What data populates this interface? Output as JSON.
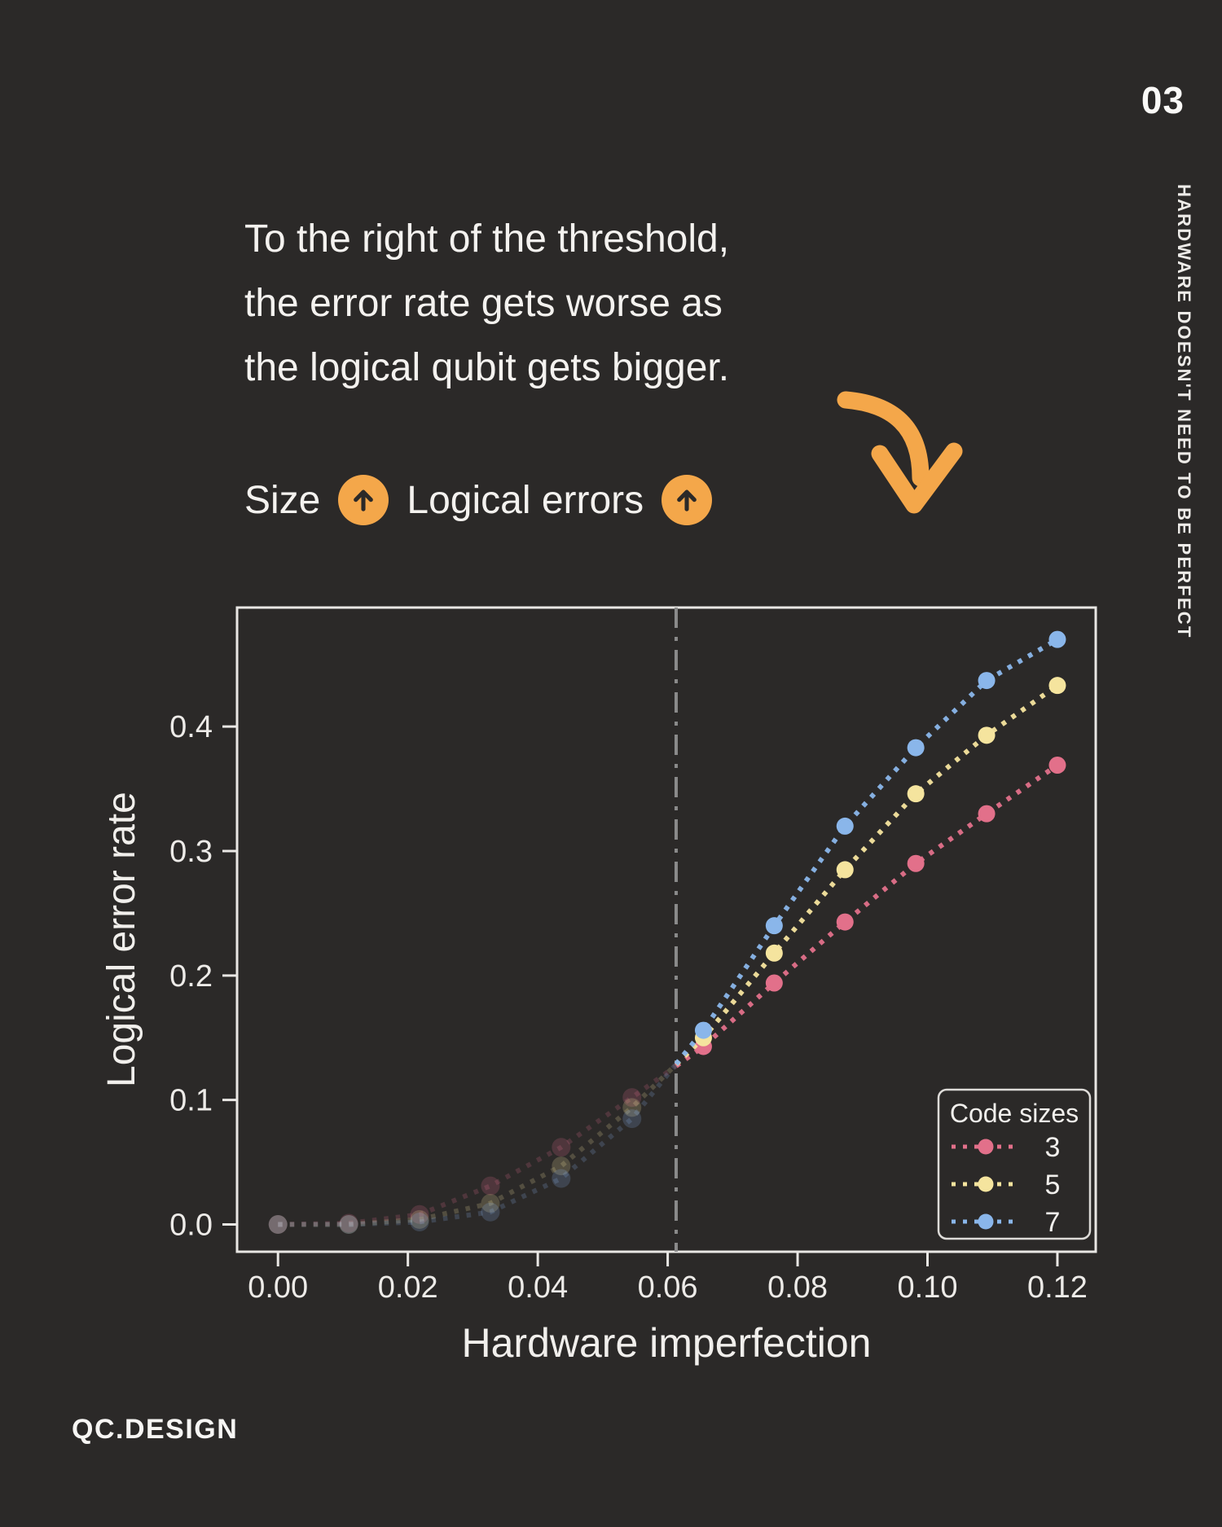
{
  "page": {
    "page_number": "03",
    "side_label": "HARDWARE DOESN'T NEED TO BE PERFECT",
    "headline": [
      "To the right of the threshold,",
      "the error rate gets worse as",
      "the logical qubit gets bigger."
    ],
    "size_row": {
      "size_label": "Size",
      "logical_errors_label": "Logical errors",
      "up_arrow_glyph": "↑"
    },
    "footer_logo": "QC.DESIGN",
    "colors": {
      "background": "#2B2928",
      "text": "#F4F2EF",
      "accent_orange": "#F4A74A",
      "axis": "#E9E7E4",
      "threshold_line": "#8A8A8A"
    },
    "icons": {
      "up_arrow": "circled up arrow in orange badge",
      "curved_down_arrow": "orange arrow curving down toward the chart"
    }
  },
  "chart_data": {
    "type": "scatter",
    "title": "",
    "xlabel": "Hardware imperfection",
    "ylabel": "Logical error rate",
    "x_ticks": [
      0.0,
      0.02,
      0.04,
      0.06,
      0.08,
      0.1,
      0.12
    ],
    "y_ticks": [
      0.0,
      0.1,
      0.2,
      0.3,
      0.4
    ],
    "xlim": [
      -0.0063,
      0.1259
    ],
    "ylim": [
      -0.0219,
      0.4956
    ],
    "grid": false,
    "threshold_x": 0.0613,
    "fade_left_of_threshold": true,
    "x": [
      0.0,
      0.0109,
      0.0218,
      0.0327,
      0.0436,
      0.0545,
      0.0655,
      0.0764,
      0.0873,
      0.0982,
      0.1091,
      0.12
    ],
    "series": [
      {
        "name": "3",
        "color": "#E2708A",
        "values": [
          0.0,
          0.001,
          0.008,
          0.031,
          0.062,
          0.102,
          0.143,
          0.194,
          0.243,
          0.29,
          0.33,
          0.369
        ]
      },
      {
        "name": "5",
        "color": "#F5E49E",
        "values": [
          0.0,
          0.0,
          0.004,
          0.017,
          0.047,
          0.094,
          0.15,
          0.218,
          0.285,
          0.346,
          0.393,
          0.433
        ]
      },
      {
        "name": "7",
        "color": "#8AB6EA",
        "values": [
          0.0,
          0.0,
          0.002,
          0.01,
          0.037,
          0.085,
          0.156,
          0.24,
          0.32,
          0.383,
          0.437,
          0.47
        ]
      }
    ],
    "legend": {
      "title": "Code sizes",
      "position": "lower right",
      "entries": [
        "3",
        "5",
        "7"
      ]
    }
  }
}
